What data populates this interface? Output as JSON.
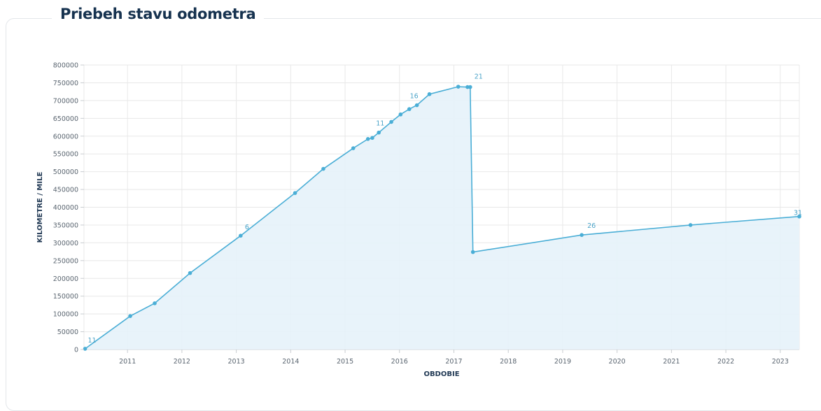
{
  "page": {
    "title": "Priebeh stavu odometra"
  },
  "chart_data": {
    "type": "area",
    "title": "Priebeh stavu odometra",
    "xlabel": "OBDOBIE",
    "ylabel": "KILOMETRE / MILE",
    "xlim": [
      2010.2,
      2023.35
    ],
    "ylim": [
      0,
      800000
    ],
    "x_ticks": [
      2011,
      2012,
      2013,
      2014,
      2015,
      2016,
      2017,
      2018,
      2019,
      2020,
      2021,
      2022,
      2023
    ],
    "y_ticks": [
      0,
      50000,
      100000,
      150000,
      200000,
      250000,
      300000,
      350000,
      400000,
      450000,
      500000,
      550000,
      600000,
      650000,
      700000,
      750000,
      800000
    ],
    "grid": true,
    "colors": {
      "line": "#4aaed6",
      "fill": "#e6f2fa",
      "grid": "#e8e8e8"
    },
    "series": [
      {
        "points": [
          {
            "x": 2010.22,
            "y": 2000
          },
          {
            "x": 2011.05,
            "y": 94000
          },
          {
            "x": 2011.5,
            "y": 130000
          },
          {
            "x": 2012.15,
            "y": 215000
          },
          {
            "x": 2013.08,
            "y": 320000
          },
          {
            "x": 2014.08,
            "y": 440000
          },
          {
            "x": 2014.6,
            "y": 508000
          },
          {
            "x": 2015.15,
            "y": 566000
          },
          {
            "x": 2015.42,
            "y": 592000
          },
          {
            "x": 2015.5,
            "y": 595000
          },
          {
            "x": 2015.62,
            "y": 610000
          },
          {
            "x": 2015.85,
            "y": 640000
          },
          {
            "x": 2016.02,
            "y": 661000
          },
          {
            "x": 2016.18,
            "y": 676000
          },
          {
            "x": 2016.32,
            "y": 687000
          },
          {
            "x": 2016.55,
            "y": 718000
          },
          {
            "x": 2017.08,
            "y": 739000
          },
          {
            "x": 2017.25,
            "y": 738000
          },
          {
            "x": 2017.3,
            "y": 738000
          },
          {
            "x": 2017.35,
            "y": 274000
          },
          {
            "x": 2019.35,
            "y": 322000
          },
          {
            "x": 2021.35,
            "y": 350000
          },
          {
            "x": 2023.35,
            "y": 374000
          }
        ]
      }
    ],
    "point_labels": [
      {
        "text": "1",
        "x": 2010.22,
        "y": 2000
      },
      {
        "text": "1",
        "x": 2010.22,
        "y": 2000
      },
      {
        "text": "6",
        "x": 2013.08,
        "y": 320000
      },
      {
        "text": "11",
        "x": 2015.62,
        "y": 610000
      },
      {
        "text": "16",
        "x": 2016.32,
        "y": 687000
      },
      {
        "text": "21",
        "x": 2017.35,
        "y": 738000
      },
      {
        "text": "26",
        "x": 2019.35,
        "y": 322000
      },
      {
        "text": "31",
        "x": 2023.35,
        "y": 374000
      }
    ]
  }
}
